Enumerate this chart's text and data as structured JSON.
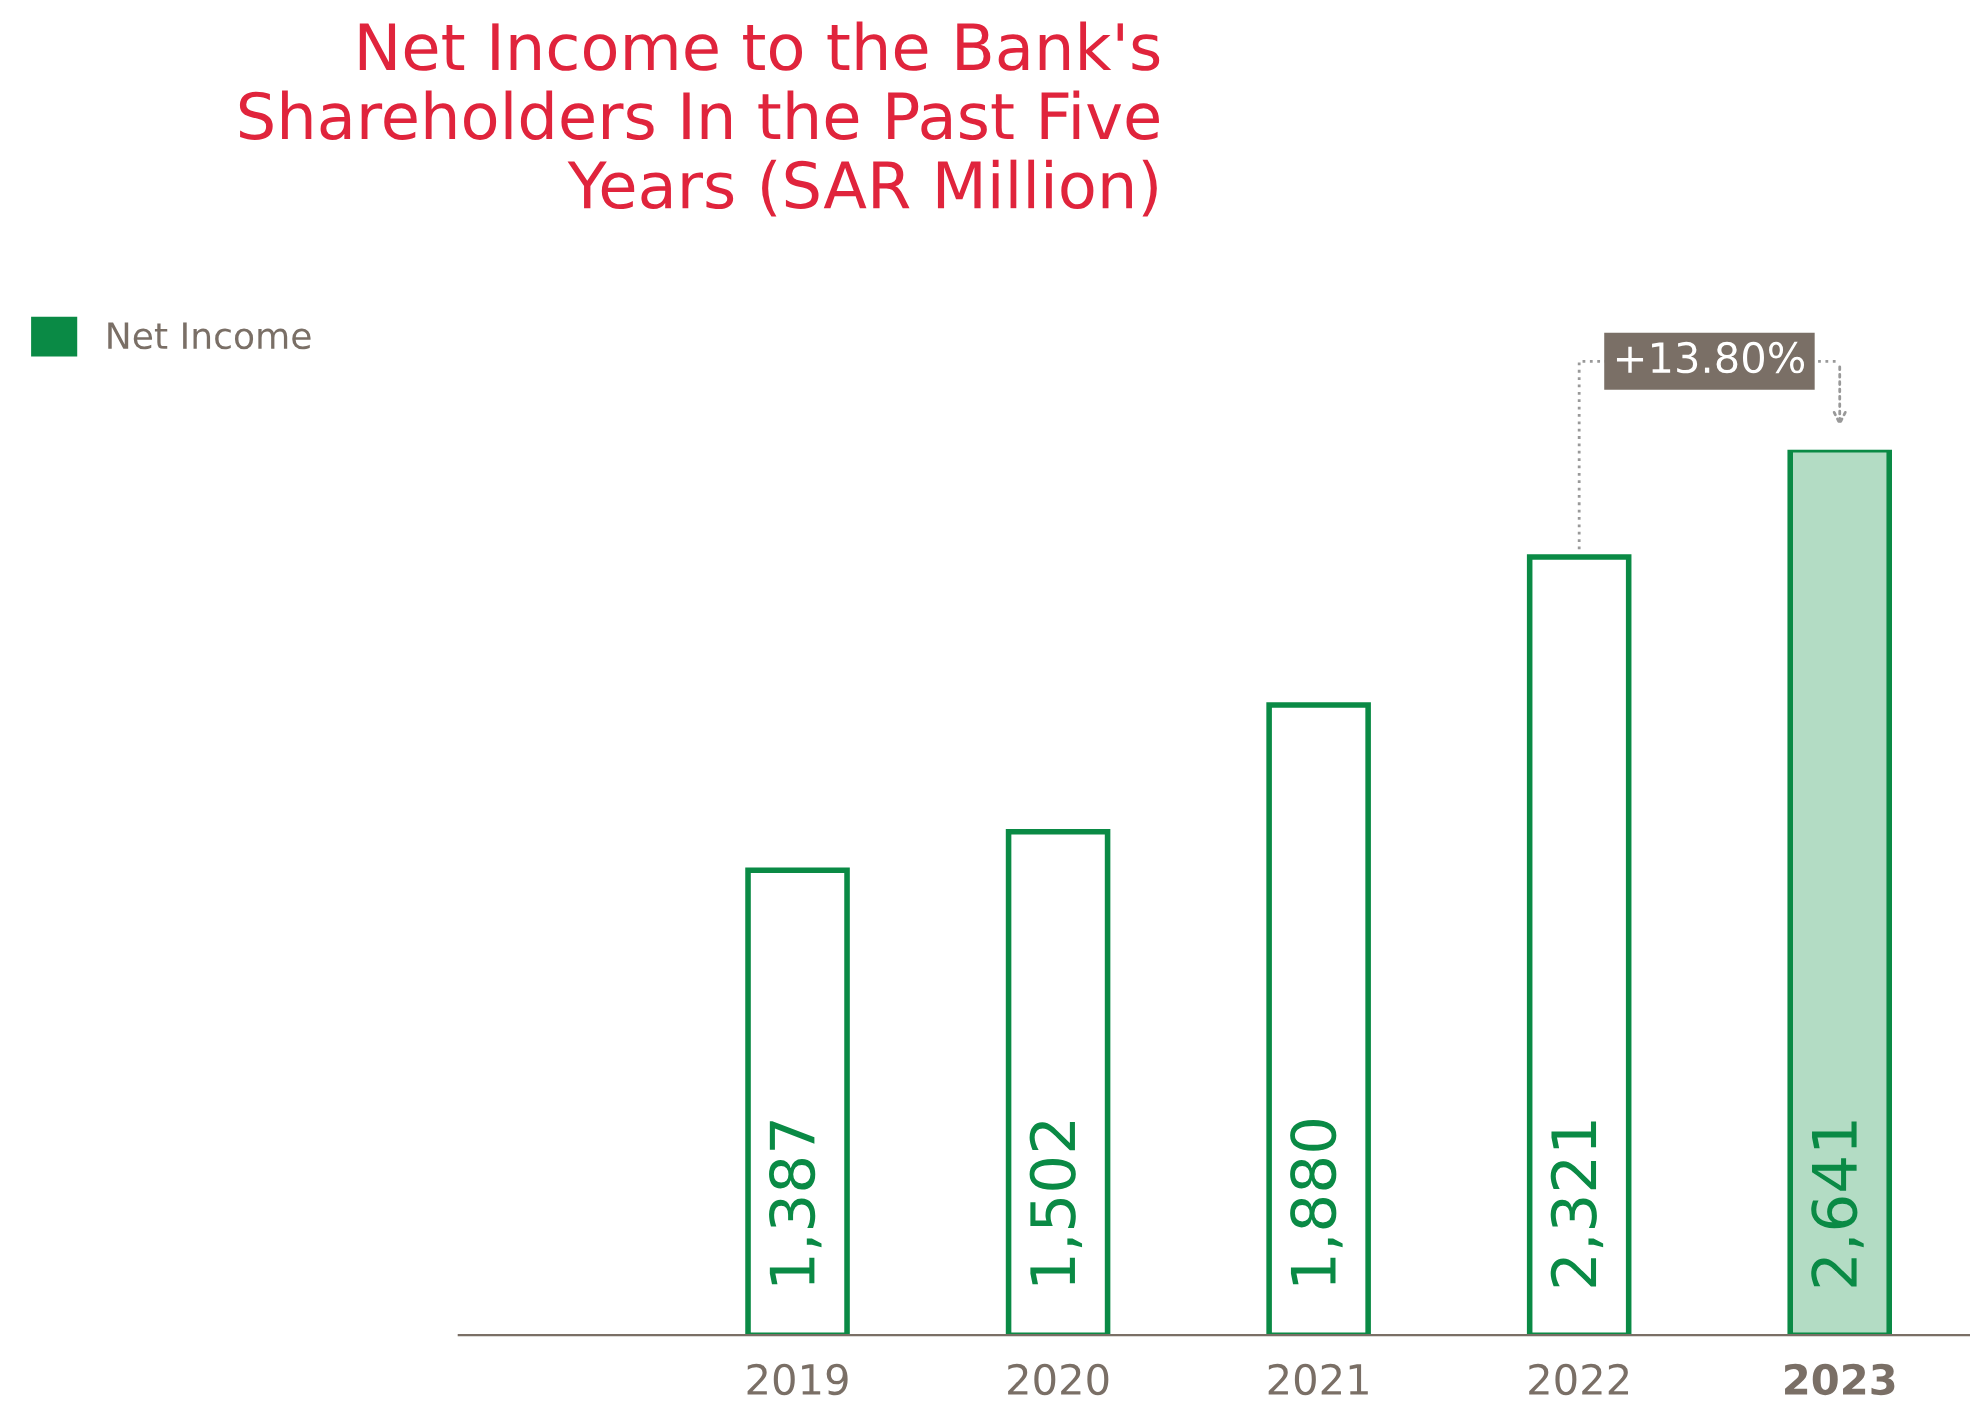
{
  "chart_data": {
    "type": "bar",
    "title": "Net Income to the Bank's\nShareholders In the Past Five\nYears (SAR Million)",
    "categories": [
      "2019",
      "2020",
      "2021",
      "2022",
      "2023"
    ],
    "series": [
      {
        "name": "Net Income",
        "color": "#0a8a45",
        "values": [
          1387,
          1502,
          1880,
          2321,
          2641
        ],
        "colors": [
          "#ffffff",
          "#ffffff",
          "#ffffff",
          "#ffffff",
          "#b3dcc4"
        ],
        "value_labels": [
          "1,387",
          "1,502",
          "1,880",
          "2,321",
          "2,641"
        ]
      }
    ],
    "legend": "top left",
    "grid": false,
    "annotations": [
      {
        "text": "+13.80%",
        "x": "2023",
        "y": 2641
      }
    ]
  }
}
